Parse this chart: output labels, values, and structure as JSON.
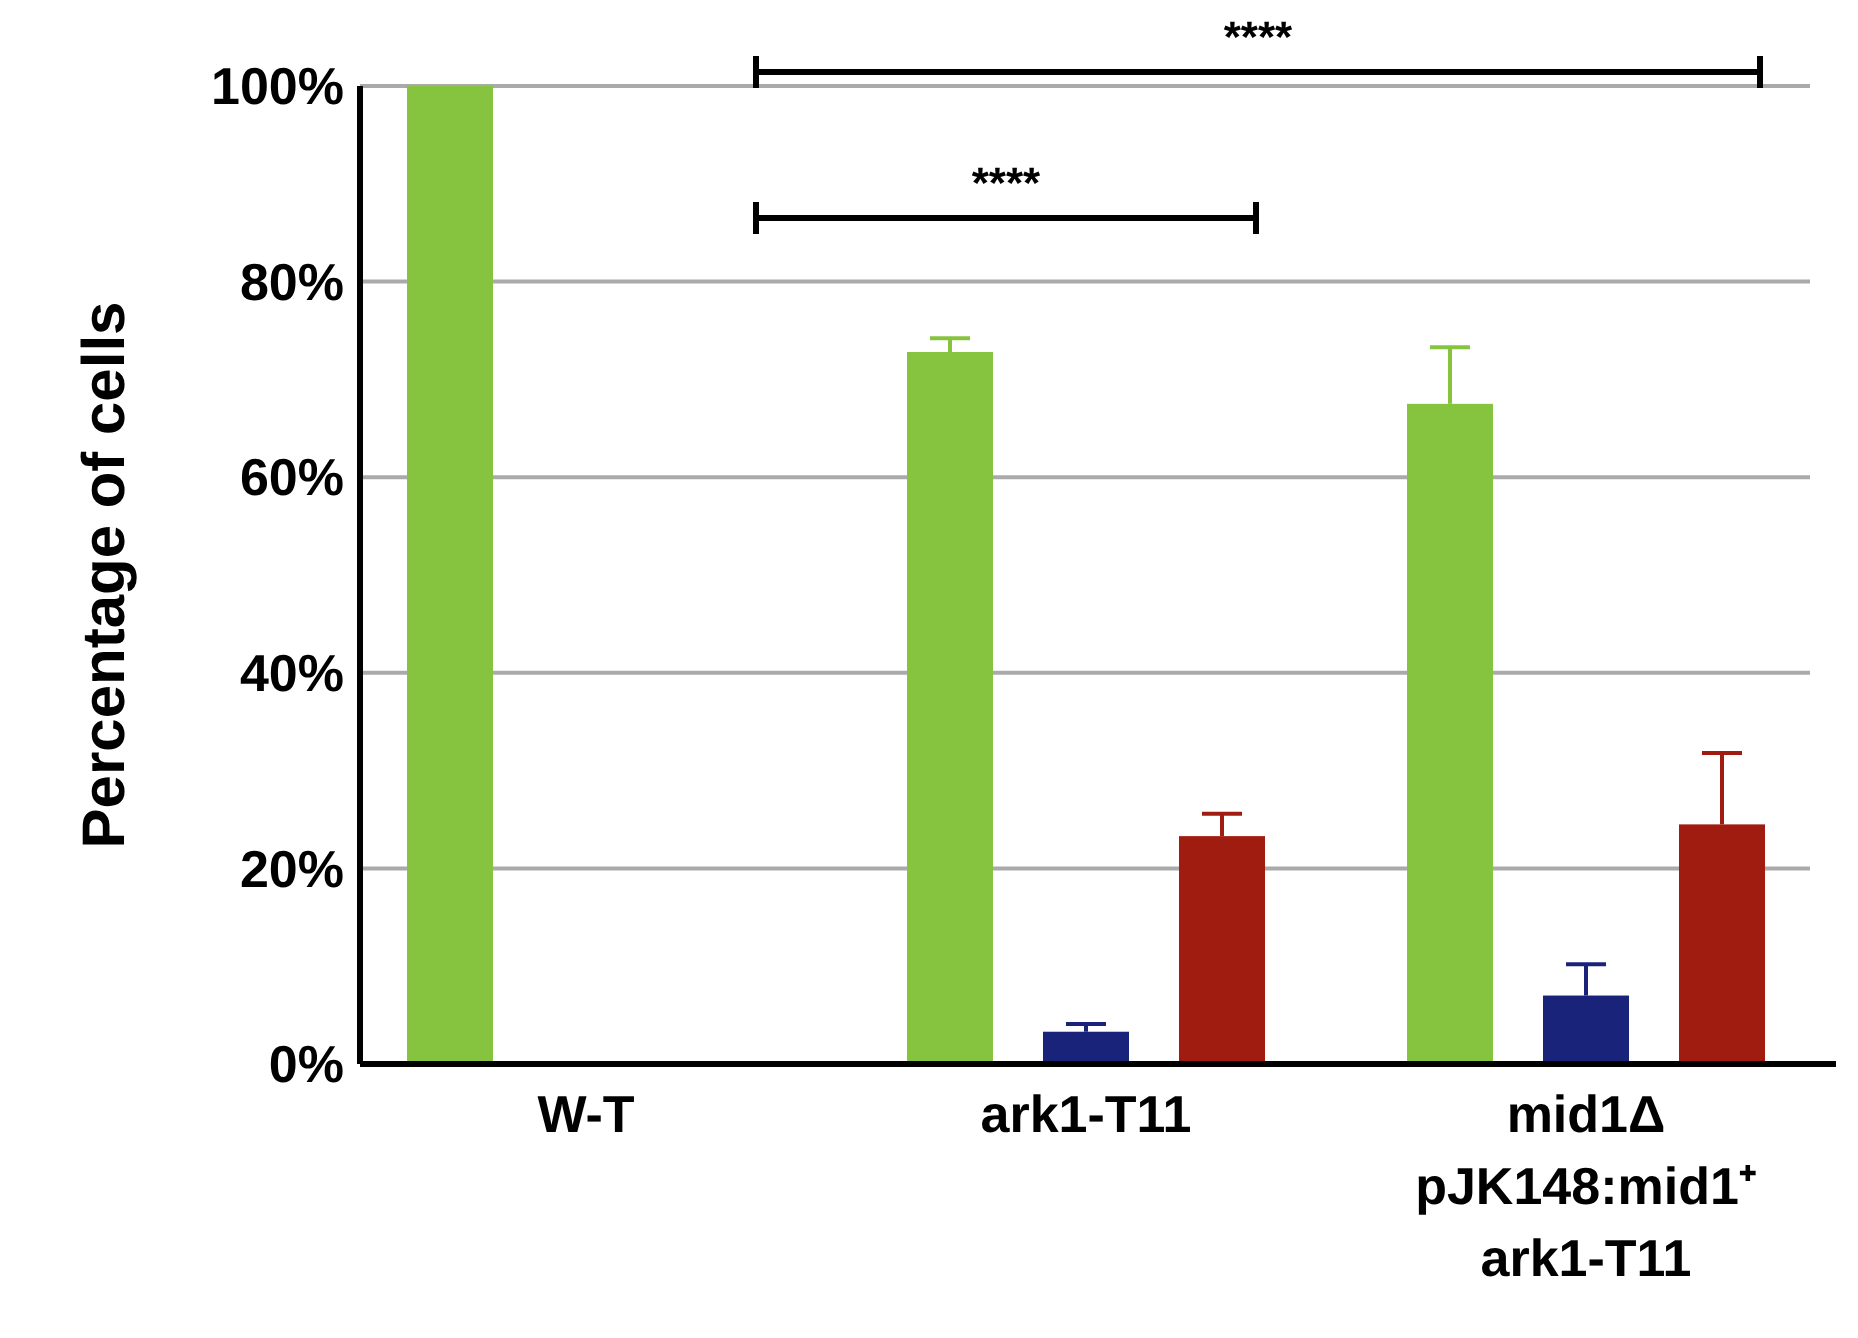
{
  "chart_data": {
    "type": "bar",
    "ylabel": "Percentage of cells",
    "categories": [
      "W-T",
      "ark1-T11",
      "mid1Δ\npJK148:mid1⁺\nark1-T11"
    ],
    "series": [
      {
        "color": "#86c440",
        "values": [
          100,
          72.8,
          67.5
        ],
        "errors": [
          null,
          1.4,
          5.8
        ]
      },
      {
        "color": "#1a237a",
        "values": [
          0,
          3.3,
          7.0
        ],
        "errors": [
          null,
          0.8,
          3.2
        ]
      },
      {
        "color": "#a01c10",
        "values": [
          0,
          23.3,
          24.5
        ],
        "errors": [
          null,
          2.3,
          7.3
        ]
      }
    ],
    "ylim": [
      0,
      100
    ],
    "yticks": [
      {
        "value": 0,
        "label": "0%"
      },
      {
        "value": 20,
        "label": "20%"
      },
      {
        "value": 40,
        "label": "40%"
      },
      {
        "value": 60,
        "label": "60%"
      },
      {
        "value": 80,
        "label": "80%"
      },
      {
        "value": 100,
        "label": "100%"
      }
    ],
    "grid": "y",
    "annotations": [
      "****",
      "****"
    ]
  }
}
